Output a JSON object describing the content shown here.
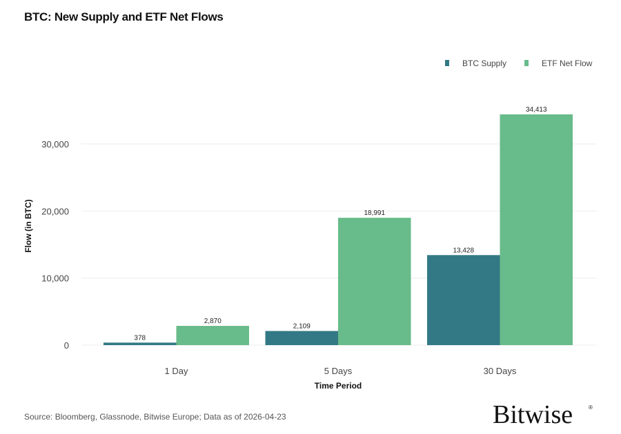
{
  "chart_data": {
    "type": "bar",
    "title": "BTC: New Supply and ETF Net Flows",
    "xlabel": "Time Period",
    "ylabel": "Flow (in BTC)",
    "categories": [
      "1 Day",
      "5 Days",
      "30 Days"
    ],
    "series": [
      {
        "name": "BTC Supply",
        "values": [
          378,
          2109,
          13428
        ],
        "labels": [
          "378",
          "2,109",
          "13,428"
        ],
        "color": "#327985"
      },
      {
        "name": "ETF Net Flow",
        "values": [
          2870,
          18991,
          34413
        ],
        "labels": [
          "2,870",
          "18,991",
          "34,413"
        ],
        "color": "#68BB8A"
      }
    ],
    "yticks": [
      0,
      10000,
      20000,
      30000
    ],
    "ytick_labels": [
      "0",
      "10,000",
      "20,000",
      "30,000"
    ],
    "ylim": [
      0,
      36000
    ],
    "grid": true,
    "legend": "top-right"
  },
  "footer": {
    "source": "Source: Bloomberg, Glassnode, Bitwise Europe; Data as of 2026-04-23",
    "logo": "Bitwise"
  }
}
